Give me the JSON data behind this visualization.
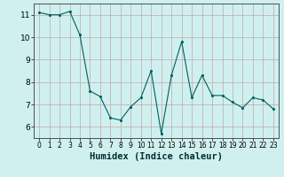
{
  "x": [
    0,
    1,
    2,
    3,
    4,
    5,
    6,
    7,
    8,
    9,
    10,
    11,
    12,
    13,
    14,
    15,
    16,
    17,
    18,
    19,
    20,
    21,
    22,
    23
  ],
  "y": [
    11.1,
    11.0,
    11.0,
    11.15,
    10.1,
    7.6,
    7.35,
    6.4,
    6.3,
    6.9,
    7.3,
    8.5,
    5.7,
    8.3,
    9.8,
    7.3,
    8.3,
    7.4,
    7.4,
    7.1,
    6.85,
    7.3,
    7.2,
    6.8
  ],
  "xlabel": "Humidex (Indice chaleur)",
  "yticks": [
    6,
    7,
    8,
    9,
    10,
    11
  ],
  "xticks": [
    0,
    1,
    2,
    3,
    4,
    5,
    6,
    7,
    8,
    9,
    10,
    11,
    12,
    13,
    14,
    15,
    16,
    17,
    18,
    19,
    20,
    21,
    22,
    23
  ],
  "ylim": [
    5.5,
    11.5
  ],
  "xlim": [
    -0.5,
    23.5
  ],
  "line_color": "#006060",
  "marker_color": "#006060",
  "bg_color": "#d0f0f0",
  "grid_color": "#c0a8a8",
  "xlabel_fontsize": 7.5,
  "tick_fontsize_x": 5.5,
  "tick_fontsize_y": 6.5
}
